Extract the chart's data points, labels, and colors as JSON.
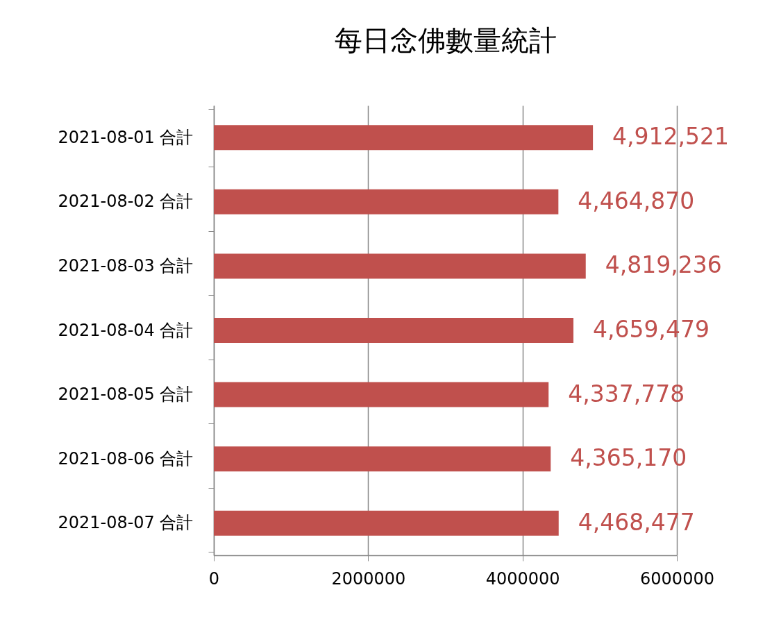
{
  "chart_data": {
    "type": "bar",
    "orientation": "horizontal",
    "title": "每日念佛數量統計",
    "categories": [
      "2021-08-01 合計",
      "2021-08-02 合計",
      "2021-08-03 合計",
      "2021-08-04 合計",
      "2021-08-05 合計",
      "2021-08-06 合計",
      "2021-08-07 合計"
    ],
    "values": [
      4912521,
      4464870,
      4819236,
      4659479,
      4337778,
      4365170,
      4468477
    ],
    "value_labels": [
      "4,912,521",
      "4,464,870",
      "4,819,236",
      "4,659,479",
      "4,337,778",
      "4,365,170",
      "4,468,477"
    ],
    "color": "#c0504d",
    "xlim": [
      0,
      6000000
    ],
    "xticks": [
      0,
      2000000,
      4000000,
      6000000
    ],
    "grid": "x"
  }
}
